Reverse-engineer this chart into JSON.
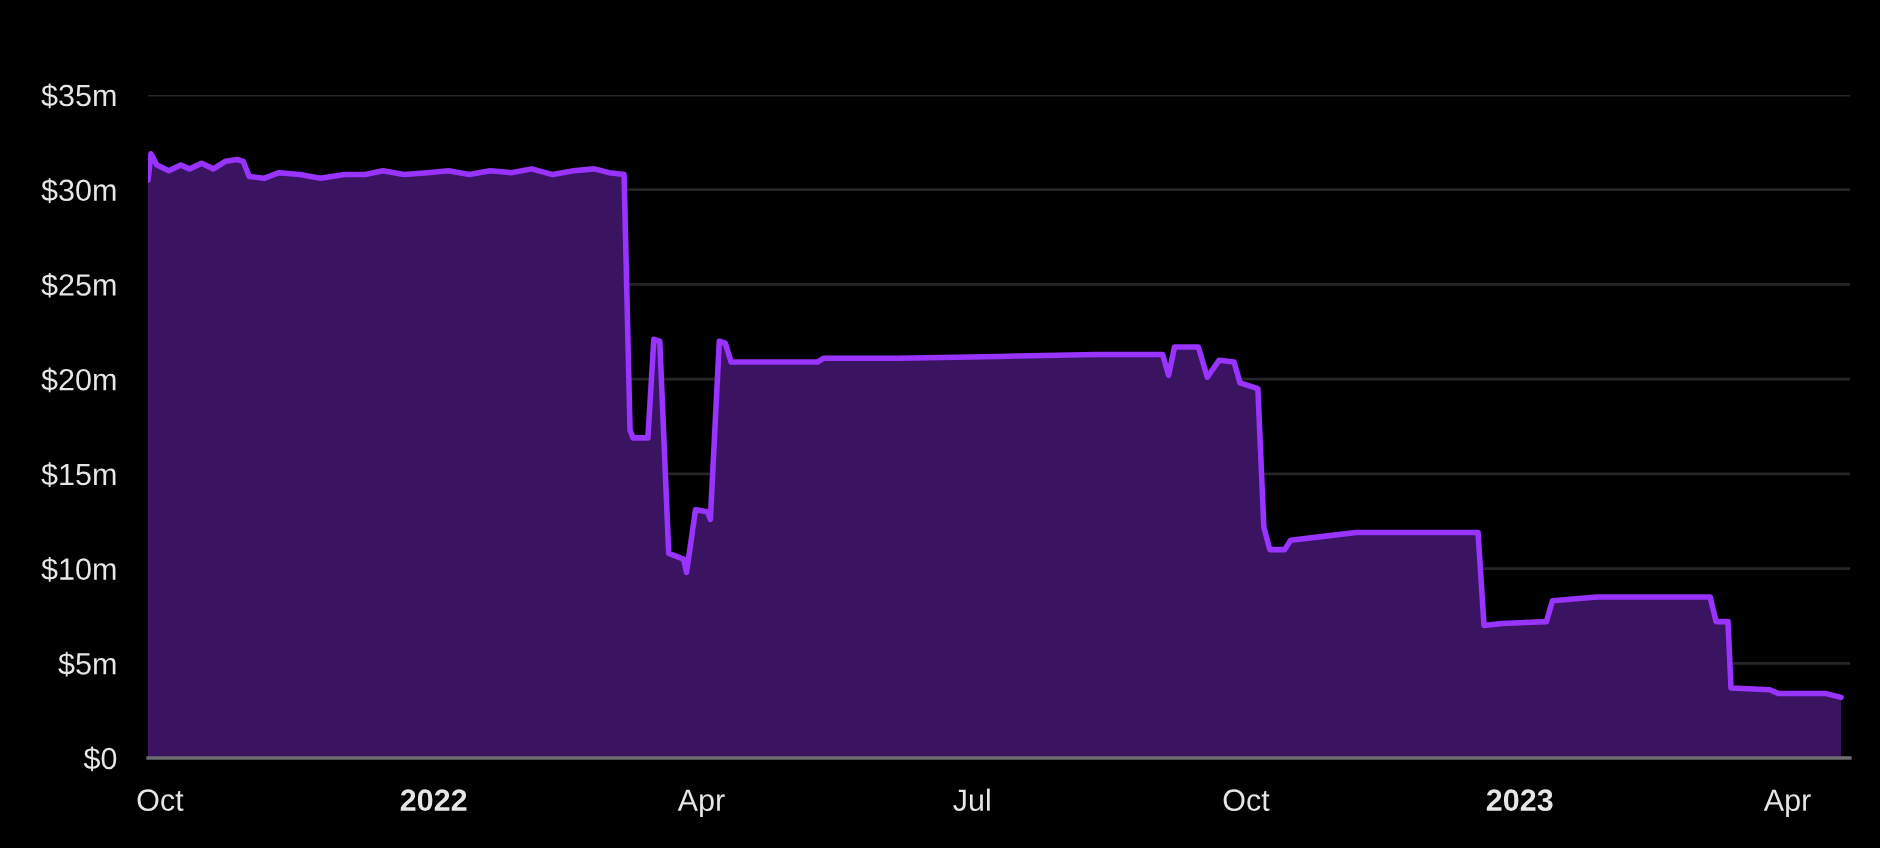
{
  "chart_data": {
    "type": "area",
    "color": "#9933ff",
    "x": [
      "2021-09-27",
      "2021-09-28",
      "2021-09-30",
      "2021-10-04",
      "2021-10-08",
      "2021-10-11",
      "2021-10-15",
      "2021-10-19",
      "2021-10-23",
      "2021-10-27",
      "2021-10-29",
      "2021-10-31",
      "2021-11-05",
      "2021-11-10",
      "2021-11-17",
      "2021-11-24",
      "2021-12-02",
      "2021-12-09",
      "2021-12-15",
      "2021-12-22",
      "2021-12-30",
      "2022-01-06",
      "2022-01-13",
      "2022-01-20",
      "2022-01-27",
      "2022-02-03",
      "2022-02-10",
      "2022-02-17",
      "2022-02-24",
      "2022-03-01",
      "2022-03-06",
      "2022-03-08",
      "2022-03-09",
      "2022-03-14",
      "2022-03-16",
      "2022-03-18",
      "2022-03-21",
      "2022-03-26",
      "2022-03-27",
      "2022-03-30",
      "2022-04-03",
      "2022-04-04",
      "2022-04-07",
      "2022-04-09",
      "2022-04-11",
      "2022-05-10",
      "2022-05-12",
      "2022-06-06",
      "2022-07-10",
      "2022-08-12",
      "2022-09-03",
      "2022-09-05",
      "2022-09-07",
      "2022-09-15",
      "2022-09-18",
      "2022-09-22",
      "2022-09-27",
      "2022-09-29",
      "2022-10-05",
      "2022-10-07",
      "2022-10-09",
      "2022-10-14",
      "2022-10-16",
      "2022-10-27",
      "2022-11-07",
      "2022-12-18",
      "2022-12-20",
      "2022-12-26",
      "2023-01-10",
      "2023-01-12",
      "2023-01-27",
      "2023-03-06",
      "2023-03-08",
      "2023-03-12",
      "2023-03-13",
      "2023-03-26",
      "2023-03-29",
      "2023-04-14",
      "2023-04-19"
    ],
    "values": [
      30.5,
      31.9,
      31.3,
      31.0,
      31.3,
      31.1,
      31.4,
      31.1,
      31.5,
      31.6,
      31.5,
      30.7,
      30.6,
      30.9,
      30.8,
      30.6,
      30.8,
      30.8,
      31.0,
      30.8,
      30.9,
      31.0,
      30.8,
      31.0,
      30.9,
      31.1,
      30.8,
      31.0,
      31.1,
      30.9,
      30.8,
      17.3,
      16.9,
      16.9,
      22.1,
      22.0,
      10.8,
      10.5,
      9.8,
      13.1,
      13.0,
      12.6,
      22.0,
      21.9,
      20.9,
      20.9,
      21.1,
      21.1,
      21.2,
      21.3,
      21.3,
      20.2,
      21.7,
      21.7,
      20.1,
      21.0,
      20.9,
      19.8,
      19.5,
      12.2,
      11.0,
      11.0,
      11.5,
      11.7,
      11.9,
      11.9,
      7.0,
      7.1,
      7.2,
      8.3,
      8.5,
      8.5,
      7.2,
      7.2,
      3.7,
      3.6,
      3.4,
      3.4,
      3.2
    ],
    "xlim": [
      "2021-09-27",
      "2023-04-22"
    ],
    "xticks": [
      {
        "value": "2021-10-01",
        "label": "Oct"
      },
      {
        "value": "2022-01-01",
        "label": "2022"
      },
      {
        "value": "2022-04-01",
        "label": "Apr"
      },
      {
        "value": "2022-07-01",
        "label": "Jul"
      },
      {
        "value": "2022-10-01",
        "label": "Oct"
      },
      {
        "value": "2023-01-01",
        "label": "2023"
      },
      {
        "value": "2023-04-01",
        "label": "Apr"
      }
    ],
    "ylim": [
      0,
      35
    ],
    "yticks": [
      {
        "value": 0,
        "label": "$0"
      },
      {
        "value": 5,
        "label": "$5m"
      },
      {
        "value": 10,
        "label": "$10m"
      },
      {
        "value": 15,
        "label": "$15m"
      },
      {
        "value": 20,
        "label": "$20m"
      },
      {
        "value": 25,
        "label": "$25m"
      },
      {
        "value": 30,
        "label": "$30m"
      },
      {
        "value": 35,
        "label": "$35m"
      }
    ],
    "grid": "y"
  }
}
